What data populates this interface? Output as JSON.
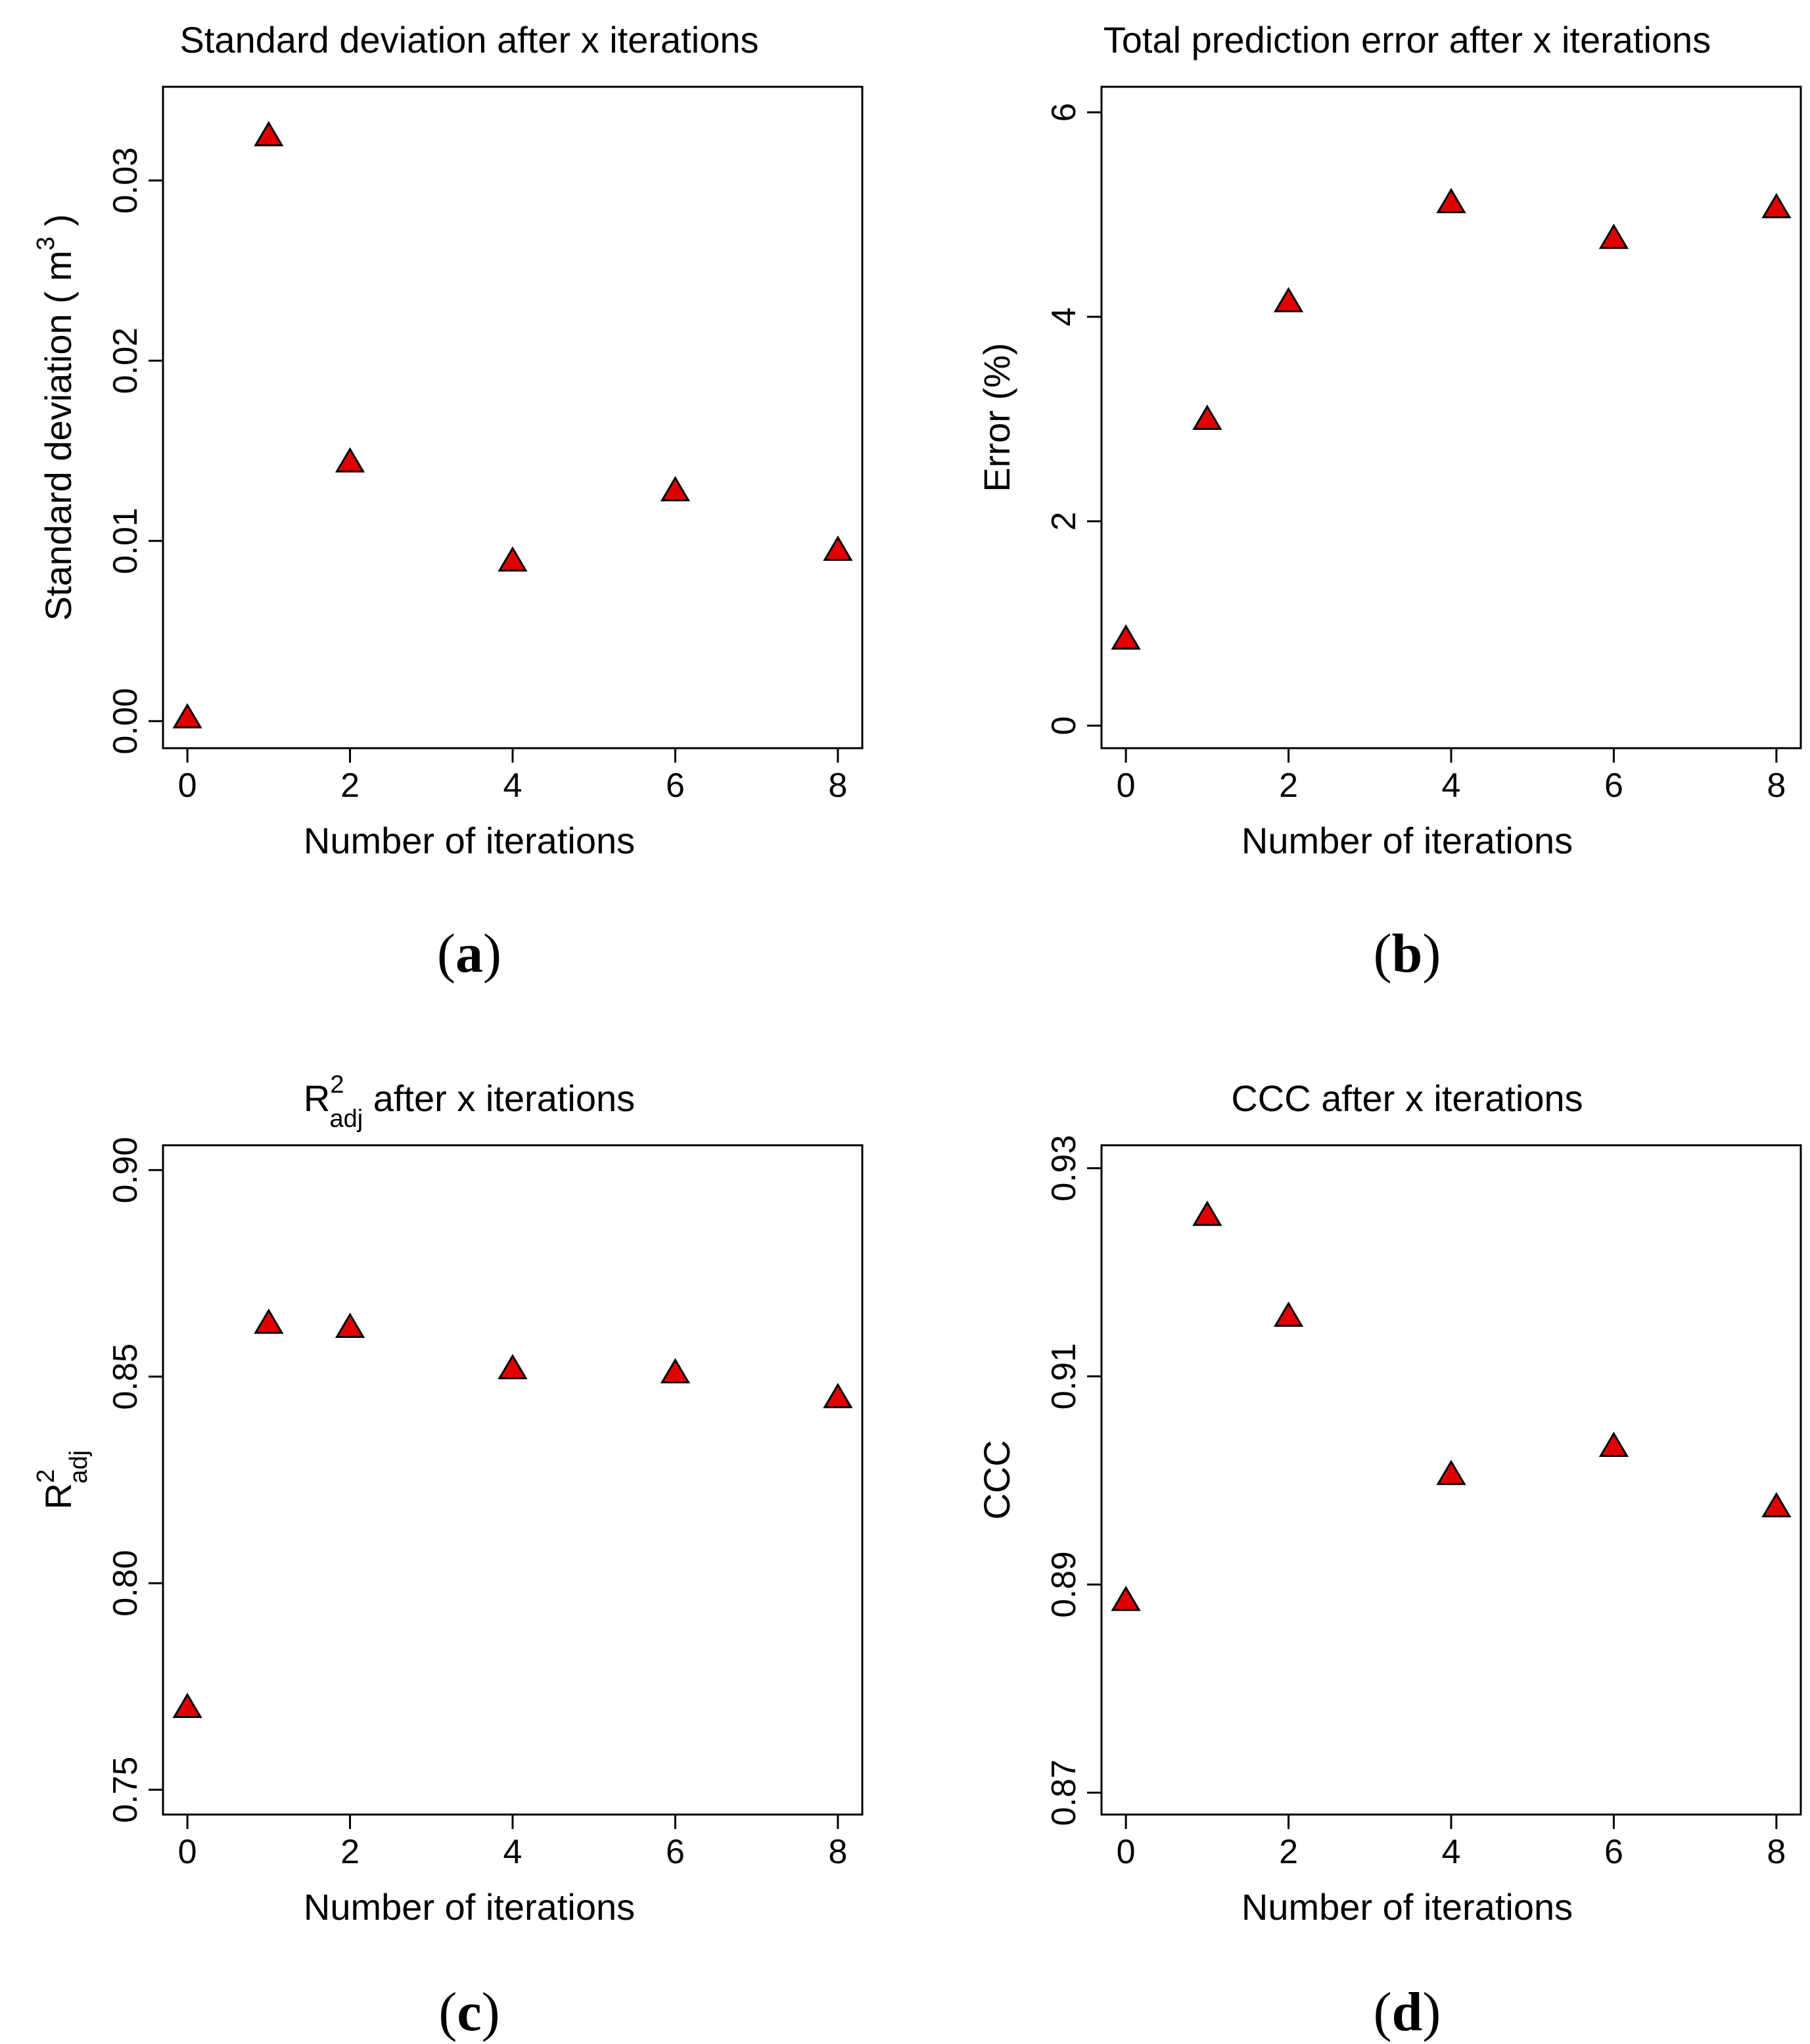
{
  "marker_color": "#e00000",
  "chart_data": [
    {
      "id": "a",
      "type": "scatter",
      "title": "Standard deviation after x iterations",
      "xlabel": "Number of iterations",
      "ylabel": "Standard deviation ( m",
      "ylabel_sup": "3",
      "ylabel_end": " )",
      "panel_label": "a",
      "x": [
        0,
        1,
        2,
        4,
        6,
        8
      ],
      "y": [
        0.0002,
        0.0325,
        0.0144,
        0.0089,
        0.0128,
        0.0095
      ],
      "xlim": [
        -0.3,
        8.3
      ],
      "ylim": [
        -0.0015,
        0.0352
      ],
      "xticks": [
        0,
        2,
        4,
        6,
        8
      ],
      "xtick_labels": [
        "0",
        "2",
        "4",
        "6",
        "8"
      ],
      "yticks": [
        0.0,
        0.01,
        0.02,
        0.03
      ],
      "ytick_labels": [
        "0.00",
        "0.01",
        "0.02",
        "0.03"
      ]
    },
    {
      "id": "b",
      "type": "scatter",
      "title": "Total prediction error after x iterations",
      "xlabel": "Number of iterations",
      "ylabel": "Error (%)",
      "panel_label": "b",
      "x": [
        0,
        1,
        2,
        4,
        6,
        8
      ],
      "y": [
        0.85,
        3.0,
        4.15,
        5.12,
        4.77,
        5.07
      ],
      "xlim": [
        -0.3,
        8.3
      ],
      "ylim": [
        -0.22,
        6.25
      ],
      "xticks": [
        0,
        2,
        4,
        6,
        8
      ],
      "xtick_labels": [
        "0",
        "2",
        "4",
        "6",
        "8"
      ],
      "yticks": [
        0,
        2,
        4,
        6
      ],
      "ytick_labels": [
        "0",
        "2",
        "4",
        "6"
      ]
    },
    {
      "id": "c",
      "type": "scatter",
      "title": " after x iterations",
      "title_main": "R",
      "title_sup": "2",
      "title_sub": "adj",
      "xlabel": "Number of iterations",
      "ylabel": "R",
      "ylabel_sup": "2",
      "ylabel_sub": "adj",
      "panel_label": "c",
      "x": [
        0,
        1,
        2,
        4,
        6,
        8
      ],
      "y": [
        0.77,
        0.863,
        0.862,
        0.852,
        0.851,
        0.845
      ],
      "xlim": [
        -0.3,
        8.3
      ],
      "ylim": [
        0.744,
        0.906
      ],
      "xticks": [
        0,
        2,
        4,
        6,
        8
      ],
      "xtick_labels": [
        "0",
        "2",
        "4",
        "6",
        "8"
      ],
      "yticks": [
        0.75,
        0.8,
        0.85,
        0.9
      ],
      "ytick_labels": [
        "0.75",
        "0.80",
        "0.85",
        "0.90"
      ]
    },
    {
      "id": "d",
      "type": "scatter",
      "title": "CCC after x iterations",
      "xlabel": "Number of iterations",
      "ylabel": "CCC",
      "panel_label": "d",
      "x": [
        0,
        1,
        2,
        4,
        6,
        8
      ],
      "y": [
        0.8885,
        0.9255,
        0.9158,
        0.9006,
        0.9033,
        0.8975
      ],
      "xlim": [
        -0.3,
        8.3
      ],
      "ylim": [
        0.8679,
        0.9322
      ],
      "xticks": [
        0,
        2,
        4,
        6,
        8
      ],
      "xtick_labels": [
        "0",
        "2",
        "4",
        "6",
        "8"
      ],
      "yticks": [
        0.87,
        0.89,
        0.91,
        0.93
      ],
      "ytick_labels": [
        "0.87",
        "0.89",
        "0.91",
        "0.93"
      ]
    }
  ]
}
